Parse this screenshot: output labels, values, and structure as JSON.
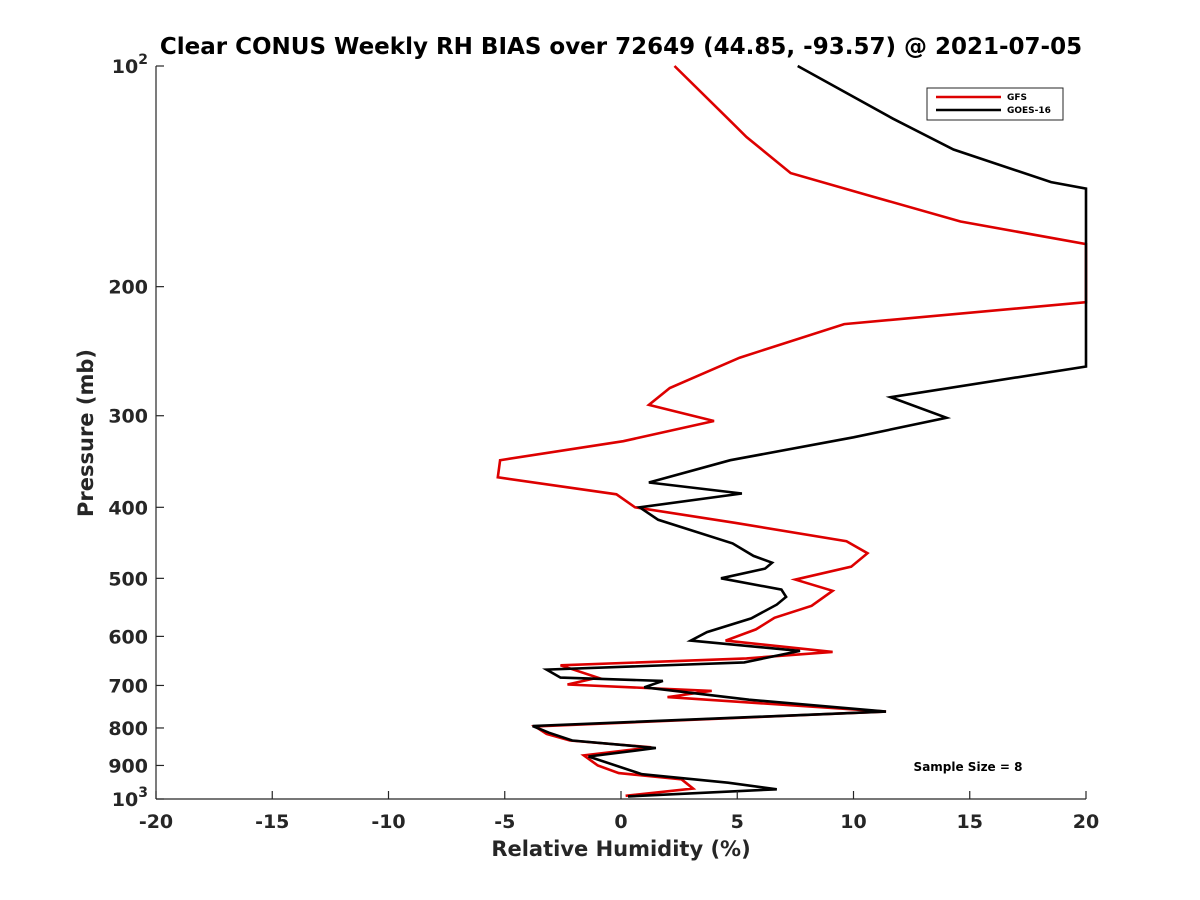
{
  "chart_data": {
    "type": "line",
    "title": "Clear CONUS Weekly RH BIAS over 72649 (44.85, -93.57) @ 2021-07-05",
    "xlabel": "Relative Humidity (%)",
    "ylabel": "Pressure (mb)",
    "xlim": [
      -20,
      20
    ],
    "ylim": [
      100,
      1000
    ],
    "yscale": "log",
    "y_reversed": true,
    "x_ticks": [
      -20,
      -15,
      -10,
      -5,
      0,
      5,
      10,
      15,
      20
    ],
    "x_tick_labels": [
      "-20",
      "-15",
      "-10",
      "-5",
      "0",
      "5",
      "10",
      "15",
      "20"
    ],
    "y_ticks": [
      100,
      200,
      300,
      400,
      500,
      600,
      700,
      800,
      900,
      1000
    ],
    "y_tick_labels": [
      {
        "base": "10",
        "exp": "2"
      },
      {
        "base": "200"
      },
      {
        "base": "300"
      },
      {
        "base": "400"
      },
      {
        "base": "500"
      },
      {
        "base": "600"
      },
      {
        "base": "700"
      },
      {
        "base": "800"
      },
      {
        "base": "900"
      },
      {
        "base": "10",
        "exp": "3"
      }
    ],
    "grid": false,
    "legend_position": "top-right",
    "annotation": "Sample Size = 8",
    "series": [
      {
        "name": "GFS",
        "color": "#dd0000",
        "points": [
          [
            2.3,
            100
          ],
          [
            4.6,
            118
          ],
          [
            5.4,
            125
          ],
          [
            7.3,
            140
          ],
          [
            10.6,
            150
          ],
          [
            14.6,
            163
          ],
          [
            20,
            175
          ],
          [
            20,
            210
          ],
          [
            9.6,
            225
          ],
          [
            5.1,
            250
          ],
          [
            2.1,
            275
          ],
          [
            1.2,
            290
          ],
          [
            4.0,
            305
          ],
          [
            0.1,
            325
          ],
          [
            -5.2,
            345
          ],
          [
            -5.3,
            364
          ],
          [
            -0.2,
            384
          ],
          [
            0.6,
            400
          ],
          [
            4.9,
            420
          ],
          [
            9.7,
            445
          ],
          [
            10.6,
            462
          ],
          [
            9.9,
            482
          ],
          [
            7.5,
            502
          ],
          [
            9.1,
            520
          ],
          [
            8.2,
            545
          ],
          [
            6.6,
            566
          ],
          [
            5.8,
            587
          ],
          [
            4.5,
            608
          ],
          [
            9.1,
            630
          ],
          [
            5.4,
            643
          ],
          [
            -2.6,
            657
          ],
          [
            -1.0,
            683
          ],
          [
            -2.3,
            698
          ],
          [
            3.9,
            712
          ],
          [
            2.0,
            726
          ],
          [
            11.4,
            760
          ],
          [
            -3.7,
            796
          ],
          [
            -3.2,
            815
          ],
          [
            -2.2,
            832
          ],
          [
            1.3,
            850
          ],
          [
            -1.6,
            872
          ],
          [
            -1.0,
            900
          ],
          [
            -0.1,
            922
          ],
          [
            2.6,
            940
          ],
          [
            3.1,
            968
          ],
          [
            0.2,
            990
          ]
        ]
      },
      {
        "name": "GOES-16",
        "color": "#000000",
        "points": [
          [
            7.6,
            100
          ],
          [
            11.7,
            118
          ],
          [
            14.3,
            130
          ],
          [
            18.5,
            144
          ],
          [
            20,
            147
          ],
          [
            20,
            257
          ],
          [
            11.6,
            283
          ],
          [
            14.0,
            302
          ],
          [
            10.0,
            321
          ],
          [
            4.7,
            345
          ],
          [
            1.2,
            370
          ],
          [
            5.2,
            383
          ],
          [
            0.8,
            400
          ],
          [
            1.6,
            416
          ],
          [
            4.8,
            448
          ],
          [
            5.7,
            466
          ],
          [
            6.5,
            476
          ],
          [
            6.2,
            485
          ],
          [
            4.3,
            500
          ],
          [
            6.9,
            518
          ],
          [
            7.1,
            530
          ],
          [
            6.7,
            543
          ],
          [
            5.6,
            567
          ],
          [
            3.7,
            592
          ],
          [
            3.0,
            608
          ],
          [
            7.7,
            628
          ],
          [
            5.3,
            651
          ],
          [
            -3.2,
            666
          ],
          [
            -2.6,
            683
          ],
          [
            1.8,
            690
          ],
          [
            1.0,
            704
          ],
          [
            5.5,
            732
          ],
          [
            11.4,
            760
          ],
          [
            -3.8,
            795
          ],
          [
            -3.1,
            812
          ],
          [
            -2.1,
            832
          ],
          [
            1.5,
            852
          ],
          [
            -1.4,
            875
          ],
          [
            0.9,
            925
          ],
          [
            4.6,
            950
          ],
          [
            6.7,
            970
          ],
          [
            0.3,
            992
          ]
        ]
      }
    ]
  }
}
